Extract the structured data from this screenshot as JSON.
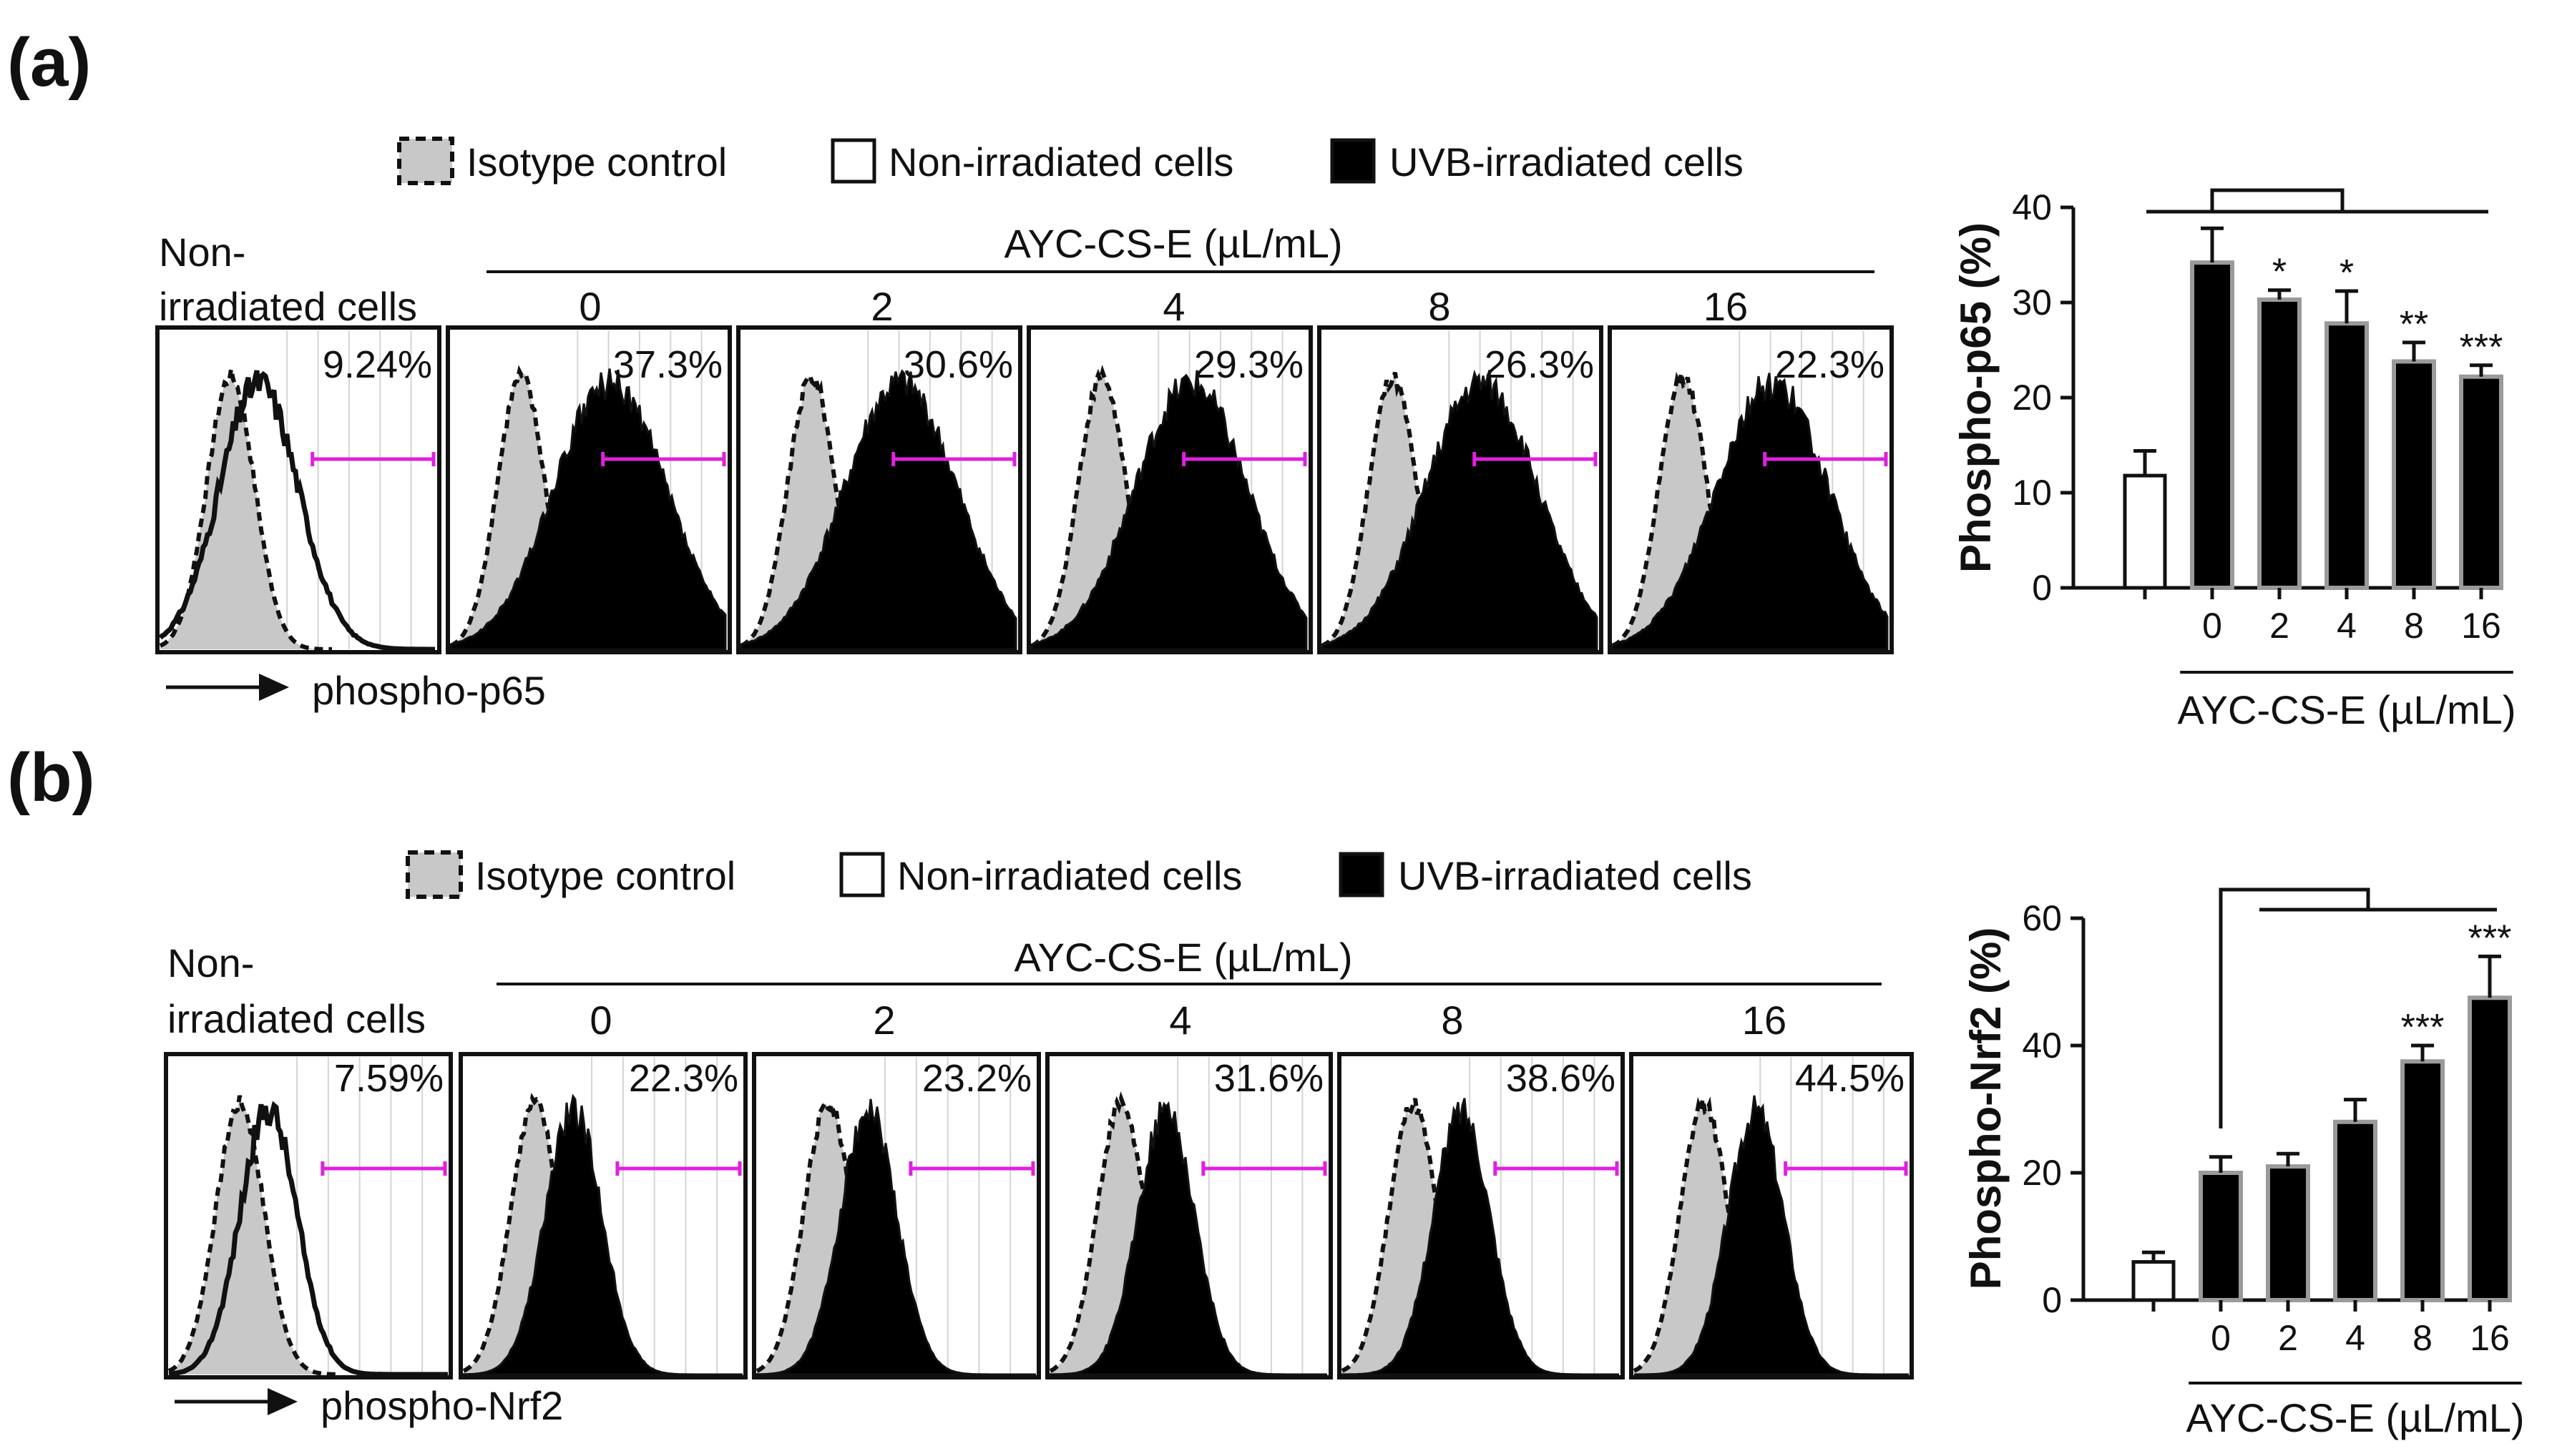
{
  "colors": {
    "magenta": "#e020e0",
    "isotype_fill": "#c8c8c8",
    "uvb_fill": "#000000",
    "bar_edge": "#9a9a9a"
  },
  "panels": [
    {
      "letter": "(a)",
      "legend": [
        "Isotype control",
        "Non-irradiated cells",
        "UVB-irradiated cells"
      ],
      "nonirr_label": [
        "Non-",
        "irradiated cells"
      ],
      "treatment_header": "AYC-CS-E (µL/mL)",
      "doses": [
        "0",
        "2",
        "4",
        "8",
        "16"
      ],
      "percentages": [
        "9.24%",
        "37.3%",
        "30.6%",
        "29.3%",
        "26.3%",
        "22.3%"
      ],
      "marker_label": "phospho-p65",
      "peak_shift": [
        0.0,
        0.36,
        0.36,
        0.36,
        0.36,
        0.36
      ]
    },
    {
      "letter": "(b)",
      "legend": [
        "Isotype control",
        "Non-irradiated cells",
        "UVB-irradiated cells"
      ],
      "nonirr_label": [
        "Non-",
        "irradiated cells"
      ],
      "treatment_header": "AYC-CS-E (µL/mL)",
      "doses": [
        "0",
        "2",
        "4",
        "8",
        "16"
      ],
      "percentages": [
        "7.59%",
        "22.3%",
        "23.2%",
        "31.6%",
        "38.6%",
        "44.5%"
      ],
      "marker_label": "phospho-Nrf2",
      "peak_shift": [
        0.0,
        0.06,
        0.07,
        0.1,
        0.12,
        0.14
      ]
    }
  ],
  "chart_data": [
    {
      "type": "bar",
      "ylabel": "Phospho-p65 (%)",
      "xlabel": "AYC-CS-E (µL/mL)",
      "ylim": [
        0,
        40
      ],
      "yticks": [
        "0",
        "10",
        "20",
        "30",
        "40"
      ],
      "categories": [
        "",
        "0",
        "2",
        "4",
        "8",
        "16"
      ],
      "values": [
        11.8,
        34.2,
        30.3,
        27.8,
        23.8,
        22.2
      ],
      "errors": [
        2.6,
        3.6,
        1.0,
        3.4,
        2.0,
        1.2
      ],
      "significance": [
        "",
        "",
        "*",
        "*",
        "**",
        "***"
      ]
    },
    {
      "type": "bar",
      "ylabel": "Phospho-Nrf2 (%)",
      "xlabel": "AYC-CS-E (µL/mL)",
      "ylim": [
        0,
        60
      ],
      "yticks": [
        "0",
        "20",
        "40",
        "60"
      ],
      "categories": [
        "",
        "0",
        "2",
        "4",
        "8",
        "16"
      ],
      "values": [
        6.0,
        20.0,
        21.0,
        28.0,
        37.5,
        47.5
      ],
      "errors": [
        1.5,
        2.5,
        2.0,
        3.5,
        2.5,
        6.5
      ],
      "significance": [
        "",
        "",
        "",
        "",
        "***",
        "***"
      ]
    }
  ]
}
